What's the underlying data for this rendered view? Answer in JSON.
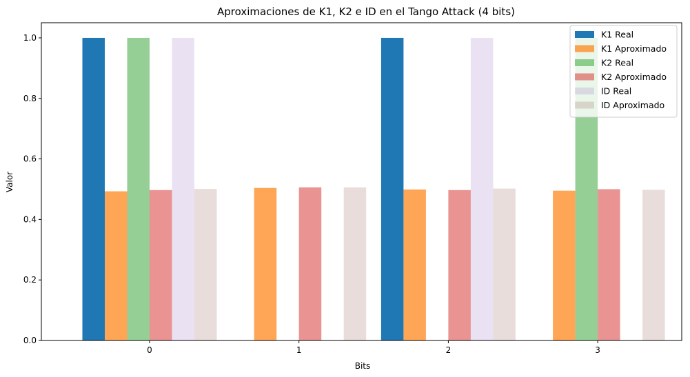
{
  "chart_data": {
    "type": "bar",
    "title": "Aproximaciones de K1, K2 e ID en el Tango Attack (4 bits)",
    "xlabel": "Bits",
    "ylabel": "Valor",
    "categories": [
      "0",
      "1",
      "2",
      "3"
    ],
    "ylim": [
      0,
      1.05
    ],
    "yticks": [
      "0.0",
      "0.2",
      "0.4",
      "0.6",
      "0.8",
      "1.0"
    ],
    "grid": false,
    "legend_position": "top-right",
    "series": [
      {
        "name": "K1 Real",
        "color": "#1f77b4",
        "opacity": 1.0,
        "values": [
          1,
          0,
          1,
          0
        ]
      },
      {
        "name": "K1 Aproximado",
        "color": "#ff7f0e",
        "opacity": 0.7,
        "values": [
          0.493,
          0.504,
          0.499,
          0.495
        ]
      },
      {
        "name": "K2 Real",
        "color": "#2ca02c",
        "opacity": 0.5,
        "values": [
          1,
          0,
          0,
          1
        ]
      },
      {
        "name": "K2 Aproximado",
        "color": "#d62728",
        "opacity": 0.5,
        "values": [
          0.497,
          0.506,
          0.497,
          0.5
        ]
      },
      {
        "name": "ID Real",
        "color": "#9467bd",
        "opacity": 0.2,
        "values": [
          1,
          0,
          1,
          0
        ]
      },
      {
        "name": "ID Aproximado",
        "color": "#8c564b",
        "opacity": 0.2,
        "values": [
          0.501,
          0.506,
          0.502,
          0.498
        ]
      }
    ]
  }
}
